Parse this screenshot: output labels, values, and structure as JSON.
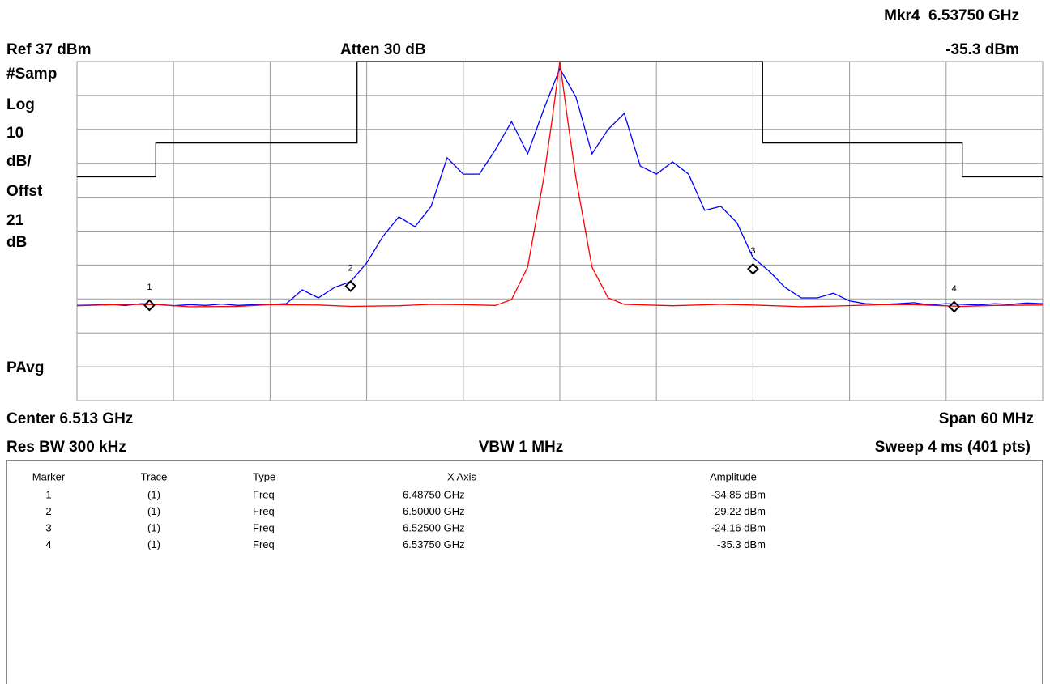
{
  "header": {
    "marker_readout": "Mkr4  6.53750 GHz",
    "marker_amplitude": "-35.3 dBm",
    "ref": "Ref 37 dBm",
    "atten": "Atten 30 dB"
  },
  "side_labels": [
    "#Samp",
    "Log",
    "10",
    "dB/",
    "Offst",
    "21",
    "dB",
    "PAvg"
  ],
  "footer": {
    "center": "Center 6.513 GHz",
    "span": "Span 60 MHz",
    "rbw": "Res BW 300 kHz",
    "vbw": "VBW 1 MHz",
    "sweep": "Sweep 4 ms (401 pts)"
  },
  "chart_data": {
    "type": "line",
    "xlim": [
      6.483,
      6.543
    ],
    "ylim": [
      -63,
      37
    ],
    "xticks": [
      6.483,
      6.489,
      6.495,
      6.501,
      6.507,
      6.513,
      6.519,
      6.525,
      6.531,
      6.537,
      6.543
    ],
    "yticks": [
      37,
      27,
      17,
      7,
      -3,
      -13,
      -23,
      -33,
      -43,
      -53,
      -63
    ],
    "grid": true,
    "series": [
      {
        "color": "#0000ff",
        "x": [
          6.483,
          6.484,
          6.485,
          6.486,
          6.487,
          6.488,
          6.489,
          6.49,
          6.491,
          6.492,
          6.493,
          6.494,
          6.495,
          6.496,
          6.497,
          6.498,
          6.499,
          6.5,
          6.501,
          6.502,
          6.503,
          6.504,
          6.505,
          6.506,
          6.507,
          6.508,
          6.509,
          6.51,
          6.511,
          6.512,
          6.513,
          6.514,
          6.515,
          6.516,
          6.517,
          6.518,
          6.519,
          6.52,
          6.521,
          6.522,
          6.523,
          6.524,
          6.525,
          6.526,
          6.527,
          6.528,
          6.529,
          6.53,
          6.531,
          6.532,
          6.533,
          6.534,
          6.535,
          6.536,
          6.537,
          6.538,
          6.539,
          6.54,
          6.541,
          6.542,
          6.543
        ],
        "values": [
          -34.9,
          -34.8,
          -34.6,
          -34.9,
          -34.4,
          -34.6,
          -35.0,
          -34.7,
          -34.9,
          -34.5,
          -34.9,
          -34.7,
          -34.6,
          -34.4,
          -30.3,
          -32.7,
          -29.6,
          -27.9,
          -22.4,
          -14.6,
          -8.8,
          -11.7,
          -5.7,
          8.6,
          3.8,
          3.8,
          11.0,
          19.3,
          9.8,
          22.9,
          34.9,
          26.5,
          9.8,
          17.0,
          21.7,
          6.2,
          3.8,
          7.4,
          3.8,
          -6.9,
          -5.7,
          -10.5,
          -20.8,
          -24.8,
          -29.6,
          -32.7,
          -32.7,
          -31.3,
          -33.6,
          -34.4,
          -34.6,
          -34.4,
          -34.1,
          -34.8,
          -34.4,
          -34.6,
          -34.8,
          -34.4,
          -34.6,
          -34.2,
          -34.4
        ]
      },
      {
        "color": "#ff0000",
        "x": [
          6.483,
          6.486,
          6.488,
          6.49,
          6.493,
          6.495,
          6.498,
          6.5,
          6.503,
          6.505,
          6.507,
          6.509,
          6.51,
          6.511,
          6.512,
          6.5125,
          6.513,
          6.5135,
          6.514,
          6.515,
          6.516,
          6.517,
          6.52,
          6.523,
          6.525,
          6.528,
          6.53,
          6.533,
          6.535,
          6.538,
          6.54,
          6.543
        ],
        "values": [
          -35.0,
          -34.6,
          -34.7,
          -35.3,
          -35.2,
          -34.7,
          -34.8,
          -35.2,
          -35.0,
          -34.6,
          -34.7,
          -34.9,
          -33.2,
          -23.6,
          2.6,
          19.3,
          37,
          19.3,
          2.6,
          -23.6,
          -32.7,
          -34.6,
          -35.0,
          -34.6,
          -34.8,
          -35.3,
          -35.1,
          -34.7,
          -34.7,
          -35.2,
          -34.9,
          -34.8
        ]
      },
      {
        "color": "#000000",
        "x": [
          6.483,
          6.4879,
          6.4879,
          6.5004,
          6.5004,
          6.5256,
          6.5256,
          6.538,
          6.538,
          6.543
        ],
        "values": [
          3,
          3,
          13,
          13,
          37,
          37,
          13,
          13,
          3,
          3
        ]
      }
    ],
    "markers": [
      {
        "label": "1",
        "x": 6.4875,
        "y": -34.85
      },
      {
        "label": "2",
        "x": 6.5,
        "y": -29.22
      },
      {
        "label": "3",
        "x": 6.525,
        "y": -24.16
      },
      {
        "label": "4",
        "x": 6.5375,
        "y": -35.3
      }
    ]
  },
  "table": {
    "columns": [
      "Marker",
      "Trace",
      "Type",
      "X Axis",
      "Amplitude"
    ],
    "rows": [
      [
        "1",
        "(1)",
        "Freq",
        "6.48750 GHz",
        "-34.85 dBm"
      ],
      [
        "2",
        "(1)",
        "Freq",
        "6.50000 GHz",
        "-29.22 dBm"
      ],
      [
        "3",
        "(1)",
        "Freq",
        "6.52500 GHz",
        "-24.16 dBm"
      ],
      [
        "4",
        "(1)",
        "Freq",
        "6.53750 GHz",
        "-35.3 dBm"
      ]
    ]
  }
}
